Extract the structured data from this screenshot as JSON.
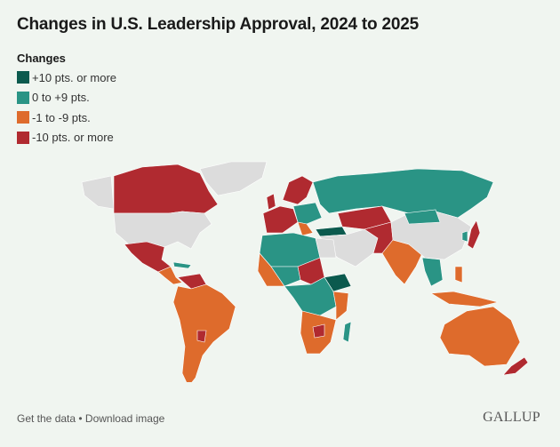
{
  "title": "Changes in U.S. Leadership Approval, 2024 to 2025",
  "legend": {
    "title": "Changes",
    "items": [
      {
        "label": "+10 pts. or more",
        "color": "#0b5a4e"
      },
      {
        "label": "0 to +9 pts.",
        "color": "#2a9485"
      },
      {
        "label": "-1 to -9 pts.",
        "color": "#de6b2c"
      },
      {
        "label": "-10 pts. or more",
        "color": "#b02a30"
      }
    ],
    "no_data_color": "#dcdcdc"
  },
  "footer": {
    "get_data": "Get the data",
    "separator": " • ",
    "download": "Download image"
  },
  "logo": "GALLUP"
}
